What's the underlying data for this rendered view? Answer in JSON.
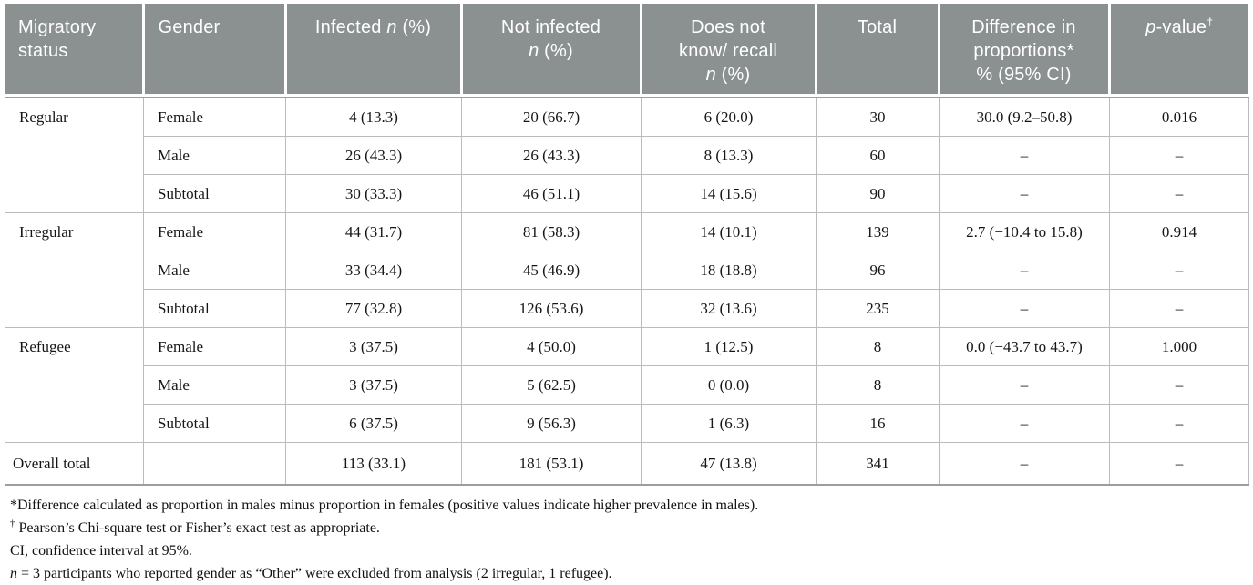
{
  "colors": {
    "header_bg": "#8b9091",
    "header_text": "#ffffff",
    "border_inner": "#b9bcbd",
    "border_strong": "#9a9ea0",
    "body_text": "#151515"
  },
  "table": {
    "columns": [
      {
        "id": "migratory-status",
        "align": "left",
        "segments": [
          {
            "t": "Migratory"
          },
          {
            "br": true
          },
          {
            "t": "status"
          }
        ]
      },
      {
        "id": "gender",
        "align": "left",
        "segments": [
          {
            "t": "Gender"
          }
        ]
      },
      {
        "id": "infected",
        "align": "center",
        "segments": [
          {
            "t": "Infected "
          },
          {
            "t": "n",
            "i": true
          },
          {
            "t": " (%)"
          }
        ]
      },
      {
        "id": "not-infected",
        "align": "center",
        "segments": [
          {
            "t": "Not infected"
          },
          {
            "br": true
          },
          {
            "t": "n",
            "i": true
          },
          {
            "t": " (%)"
          }
        ]
      },
      {
        "id": "does-not-know",
        "align": "center",
        "segments": [
          {
            "t": "Does not"
          },
          {
            "br": true
          },
          {
            "t": "know/ recall"
          },
          {
            "br": true
          },
          {
            "t": "n",
            "i": true
          },
          {
            "t": " (%)"
          }
        ]
      },
      {
        "id": "total",
        "align": "center",
        "segments": [
          {
            "t": "Total"
          }
        ]
      },
      {
        "id": "difference",
        "align": "center",
        "segments": [
          {
            "t": "Difference in"
          },
          {
            "br": true
          },
          {
            "t": "proportions*"
          },
          {
            "br": true
          },
          {
            "t": "% (95% CI)"
          }
        ]
      },
      {
        "id": "p-value",
        "align": "center",
        "segments": [
          {
            "t": "p",
            "i": true
          },
          {
            "t": "-value"
          },
          {
            "t": "†",
            "sup": true
          }
        ]
      }
    ],
    "groups": [
      {
        "status": "Regular",
        "rows": [
          {
            "gender": "Female",
            "values": [
              "4 (13.3)",
              "20 (66.7)",
              "6 (20.0)",
              "30",
              "30.0 (9.2–50.8)",
              "0.016"
            ]
          },
          {
            "gender": "Male",
            "values": [
              "26 (43.3)",
              "26 (43.3)",
              "8 (13.3)",
              "60",
              "–",
              "–"
            ]
          },
          {
            "gender": "Subtotal",
            "values": [
              "30 (33.3)",
              "46 (51.1)",
              "14 (15.6)",
              "90",
              "–",
              "–"
            ]
          }
        ]
      },
      {
        "status": "Irregular",
        "rows": [
          {
            "gender": "Female",
            "values": [
              "44 (31.7)",
              "81 (58.3)",
              "14 (10.1)",
              "139",
              "2.7 (−10.4 to 15.8)",
              "0.914"
            ]
          },
          {
            "gender": "Male",
            "values": [
              "33 (34.4)",
              "45 (46.9)",
              "18 (18.8)",
              "96",
              "–",
              "–"
            ]
          },
          {
            "gender": "Subtotal",
            "values": [
              "77 (32.8)",
              "126 (53.6)",
              "32 (13.6)",
              "235",
              "–",
              "–"
            ]
          }
        ]
      },
      {
        "status": "Refugee",
        "rows": [
          {
            "gender": "Female",
            "values": [
              "3 (37.5)",
              "4 (50.0)",
              "1 (12.5)",
              "8",
              "0.0 (−43.7 to 43.7)",
              "1.000"
            ]
          },
          {
            "gender": "Male",
            "values": [
              "3 (37.5)",
              "5 (62.5)",
              "0 (0.0)",
              "8",
              "–",
              "–"
            ]
          },
          {
            "gender": "Subtotal",
            "values": [
              "6 (37.5)",
              "9 (56.3)",
              "1 (6.3)",
              "16",
              "–",
              "–"
            ]
          }
        ]
      },
      {
        "status": "Overall total",
        "overall": true,
        "rows": [
          {
            "gender": "",
            "values": [
              "113 (33.1)",
              "181 (53.1)",
              "47 (13.8)",
              "341",
              "–",
              "–"
            ]
          }
        ]
      }
    ]
  },
  "footnotes": [
    {
      "segments": [
        {
          "t": "*Difference calculated as proportion in males minus proportion in females (positive values indicate higher prevalence in males)."
        }
      ]
    },
    {
      "segments": [
        {
          "t": "†",
          "sup": true
        },
        {
          "t": " Pearson’s Chi-square test or Fisher’s exact test as appropriate."
        }
      ]
    },
    {
      "segments": [
        {
          "t": "CI, confidence interval at 95%."
        }
      ]
    },
    {
      "segments": [
        {
          "t": "n",
          "i": true
        },
        {
          "t": " = 3 participants who reported gender as “Other” were excluded from analysis (2 irregular, 1 refugee)."
        }
      ]
    }
  ]
}
